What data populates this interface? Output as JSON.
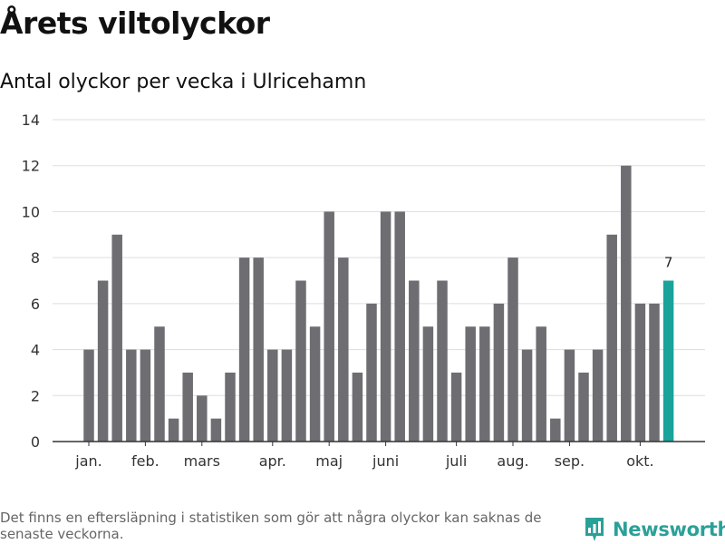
{
  "title": "Årets viltolyckor",
  "subtitle": "Antal olyckor per vecka i Ulricehamn",
  "footnote": "Det finns en eftersläpning i statistiken som gör att några olyckor kan saknas de senaste veckorna.",
  "brand": "Newsworthy",
  "colors": {
    "bar": "#6e6d72",
    "highlight": "#1aa39a",
    "grid": "#dddddd",
    "axis": "#333333",
    "brand": "#2aa198"
  },
  "chart_data": {
    "type": "bar",
    "title": "Antal olyckor per vecka i Ulricehamn",
    "xlabel": "",
    "ylabel": "",
    "ylim": [
      0,
      14
    ],
    "yticks": [
      0,
      2,
      4,
      6,
      8,
      10,
      12,
      14
    ],
    "grid": true,
    "x_tick_labels": [
      {
        "label": "jan.",
        "index": 0
      },
      {
        "label": "feb.",
        "index": 4
      },
      {
        "label": "mars",
        "index": 8
      },
      {
        "label": "apr.",
        "index": 13
      },
      {
        "label": "maj",
        "index": 17
      },
      {
        "label": "juni",
        "index": 21
      },
      {
        "label": "juli",
        "index": 26
      },
      {
        "label": "aug.",
        "index": 30
      },
      {
        "label": "sep.",
        "index": 34
      },
      {
        "label": "okt.",
        "index": 39
      }
    ],
    "values": [
      4,
      7,
      9,
      4,
      4,
      5,
      1,
      3,
      2,
      1,
      3,
      8,
      8,
      4,
      4,
      7,
      5,
      10,
      8,
      3,
      6,
      10,
      10,
      7,
      5,
      7,
      3,
      5,
      5,
      6,
      8,
      4,
      5,
      1,
      4,
      3,
      4,
      9,
      12,
      6,
      6,
      7
    ],
    "highlight_index": 41,
    "data_labels": [
      {
        "index": 41,
        "text": "7"
      }
    ]
  }
}
